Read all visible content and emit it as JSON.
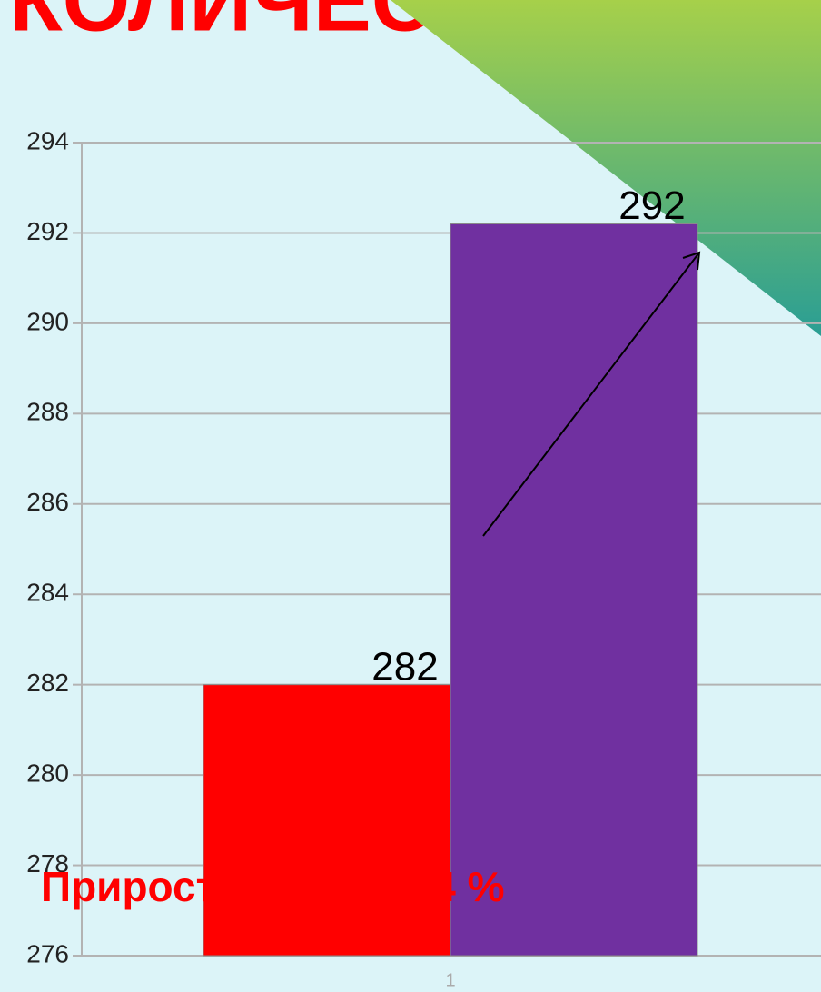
{
  "chart_data": {
    "type": "bar",
    "title": "КОЛИЧЕСТВО",
    "annotation": "Прирост составил  4 %",
    "categories": [
      "1"
    ],
    "series": [
      {
        "color": "#ff0000",
        "values": [
          282
        ],
        "value_labels": [
          "282"
        ]
      },
      {
        "color": "#7030a0",
        "values": [
          292.2
        ],
        "value_labels": [
          "292"
        ]
      }
    ],
    "ylim": [
      276,
      294
    ],
    "yticks": [
      276,
      278,
      280,
      282,
      284,
      286,
      288,
      290,
      292,
      294
    ],
    "grid": true
  }
}
